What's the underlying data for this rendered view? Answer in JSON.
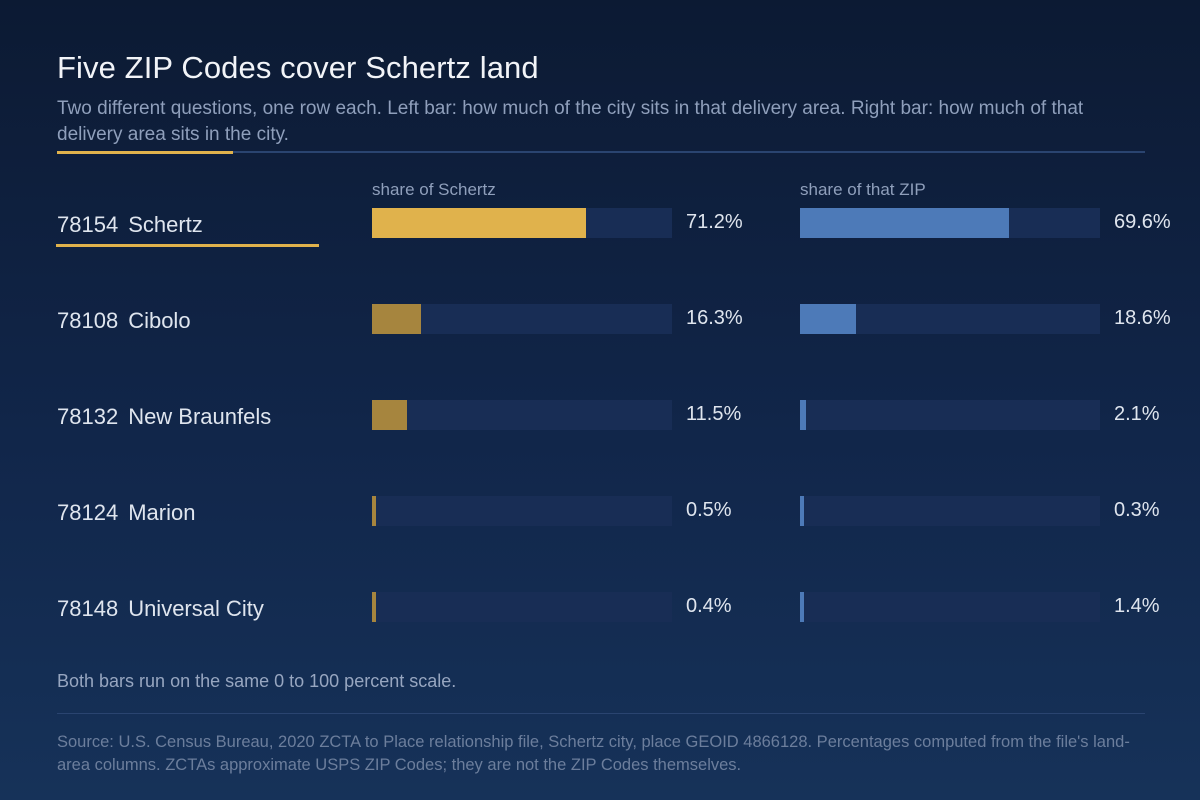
{
  "title": "Five ZIP Codes cover Schertz land",
  "subtitle": "Two different questions, one row each. Left bar: how much of the city sits in that delivery area. Right bar: how much of that delivery area sits in the city.",
  "colors": {
    "accent": "#e0b24c",
    "left_primary": "#e0b24c",
    "left_secondary": "#a6853e",
    "right_primary": "#4d7ab8",
    "track": "#182d55"
  },
  "chart_data": {
    "type": "bar",
    "orientation": "horizontal",
    "xlim": [
      0,
      100
    ],
    "categories": [
      {
        "zip": "78154",
        "name": "Schertz"
      },
      {
        "zip": "78108",
        "name": "Cibolo"
      },
      {
        "zip": "78132",
        "name": "New Braunfels"
      },
      {
        "zip": "78124",
        "name": "Marion"
      },
      {
        "zip": "78148",
        "name": "Universal City"
      }
    ],
    "highlighted_index": 0,
    "series": [
      {
        "column_label": "share of Schertz",
        "values": [
          71.2,
          16.3,
          11.5,
          0.5,
          0.4
        ],
        "value_labels": [
          "71.2%",
          "16.3%",
          "11.5%",
          "0.5%",
          "0.4%"
        ]
      },
      {
        "column_label": "share of that ZIP",
        "values": [
          69.6,
          18.6,
          2.1,
          0.3,
          1.4
        ],
        "value_labels": [
          "69.6%",
          "18.6%",
          "2.1%",
          "0.3%",
          "1.4%"
        ]
      }
    ]
  },
  "scale_note": "Both bars run on the same 0 to 100 percent scale.",
  "source": "Source: U.S. Census Bureau, 2020 ZCTA to Place relationship file, Schertz city, place GEOID 4866128. Percentages computed from the file's land-area columns. ZCTAs approximate USPS ZIP Codes; they are not the ZIP Codes themselves."
}
